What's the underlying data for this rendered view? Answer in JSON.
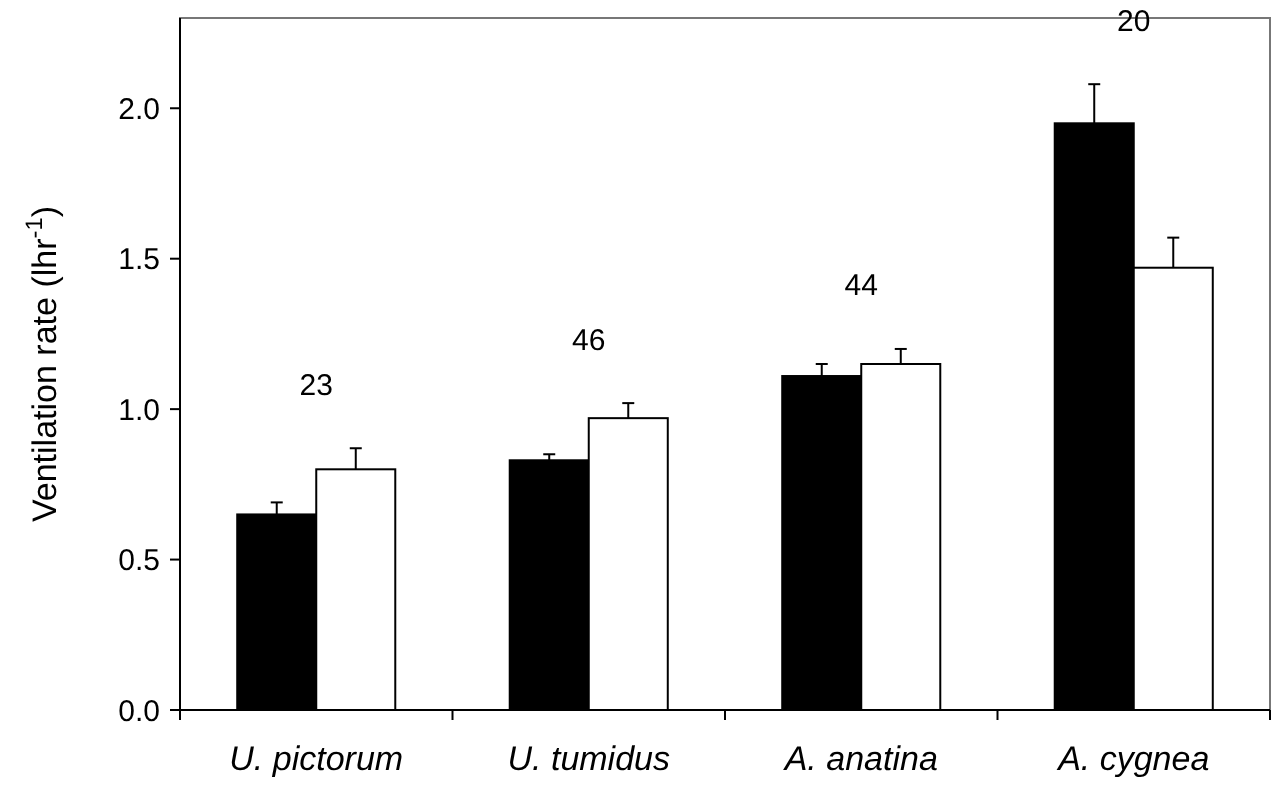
{
  "chart_data": {
    "type": "bar",
    "ylabel": "Ventilation rate (lhr$^{-1}$)",
    "categories": [
      "U. pictorum",
      "U. tumidus",
      "A. anatina",
      "A. cygnea"
    ],
    "series": [
      {
        "color": "#000000",
        "values": [
          0.65,
          0.83,
          1.11,
          1.95
        ],
        "errors": [
          0.04,
          0.02,
          0.04,
          0.13
        ]
      },
      {
        "color": "#ffffff",
        "values": [
          0.8,
          0.97,
          1.15,
          1.47
        ],
        "errors": [
          0.07,
          0.05,
          0.05,
          0.1
        ]
      }
    ],
    "ylim": [
      0,
      2.3
    ],
    "yticks": [
      {
        "value": 0,
        "label": "0.0"
      },
      {
        "value": 0.5,
        "label": "0.5"
      },
      {
        "value": 1,
        "label": "1.0"
      },
      {
        "value": 1.5,
        "label": "1.5"
      },
      {
        "value": 2,
        "label": "2.0"
      }
    ],
    "grid": false,
    "annotations": [
      "23",
      "46",
      "44",
      "20"
    ]
  }
}
